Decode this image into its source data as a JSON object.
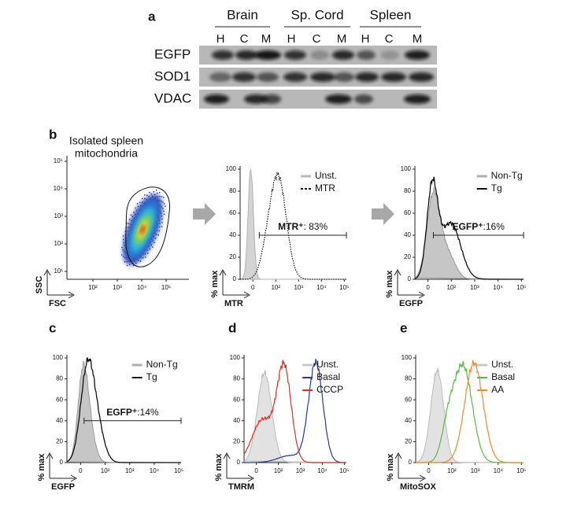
{
  "panel_a": {
    "label": "a",
    "groups": [
      "Brain",
      "Sp. Cord",
      "Spleen"
    ],
    "lanes": [
      "H",
      "C",
      "M",
      "H",
      "C",
      "M",
      "H",
      "C",
      "M"
    ],
    "rows": [
      "EGFP",
      "SOD1",
      "VDAC"
    ]
  },
  "panel_b": {
    "label": "b",
    "caption": [
      "Isolated spleen",
      "mitochondria"
    ],
    "scatter": {
      "y_label": "SSC",
      "x_label": "FSC",
      "yticks": [
        "10⁵",
        "10⁴",
        "10³",
        "10²",
        "10¹"
      ],
      "xticks": [
        "10²",
        "10³",
        "10⁴",
        "10⁵"
      ]
    },
    "mtr": {
      "y_label": "% max",
      "x_label": "MTR",
      "yticks": [
        100,
        80,
        60,
        40,
        20,
        0
      ],
      "xticks": [
        "0",
        "10²",
        "10³",
        "10⁴",
        "10⁵"
      ],
      "legend": [
        "Unst.",
        "MTR"
      ],
      "gate": [
        "MTR⁺",
        ": 83%"
      ]
    },
    "egfp": {
      "y_label": "% max",
      "x_label": "EGFP",
      "yticks": [
        100,
        80,
        60,
        40,
        20,
        0
      ],
      "xticks": [
        "0",
        "10²",
        "10³",
        "10⁴",
        "10⁵"
      ],
      "legend": [
        "Non-Tg",
        "Tg"
      ],
      "gate": [
        "EGFP⁺",
        ":16%"
      ]
    }
  },
  "panel_c": {
    "label": "c",
    "y_label": "% max",
    "x_label": "EGFP",
    "yticks": [
      100,
      80,
      60,
      40,
      20,
      0
    ],
    "xticks": [
      "0",
      "10²",
      "10³",
      "10⁴",
      "10⁵"
    ],
    "legend": [
      "Non-Tg",
      "Tg"
    ],
    "gate": [
      "EGFP⁺",
      ":14%"
    ]
  },
  "panel_d": {
    "label": "d",
    "y_label": "% max",
    "x_label": "TMRM",
    "yticks": [
      100,
      80,
      60,
      40,
      20,
      0
    ],
    "xticks": [
      "0",
      "10²",
      "10³",
      "10⁴",
      "10⁵"
    ],
    "legend": [
      "Unst.",
      "Basal",
      "CCCP"
    ]
  },
  "panel_e": {
    "label": "e",
    "y_label": "% max",
    "x_label": "MitoSOX",
    "yticks": [
      100,
      80,
      60,
      40,
      20,
      0
    ],
    "xticks": [
      "0",
      "10²",
      "10³",
      "10⁴",
      "10⁵"
    ],
    "legend": [
      "Unst.",
      "Basal",
      "AA"
    ]
  }
}
